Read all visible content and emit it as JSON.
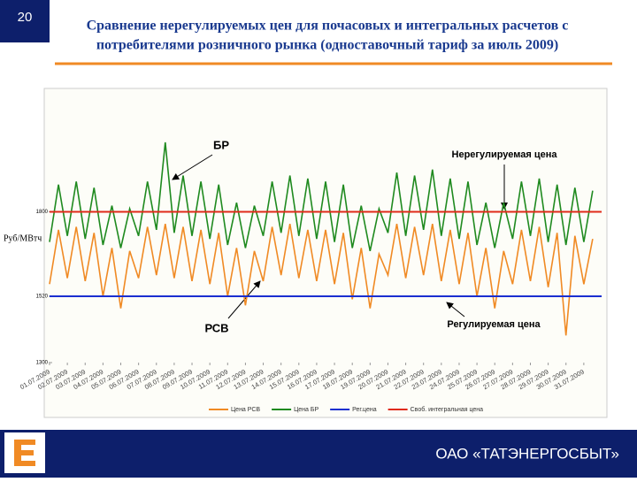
{
  "slide_number": "20",
  "title_lines": [
    "Сравнение нерегулируемых  цен для почасовых и интегральных расчетов с",
    "потребителями розничного рынка (одноставочный тариф за июль 2009)"
  ],
  "footer": "ОАО «ТАТЭНЕРГОСБЫТ»",
  "chart_data": {
    "type": "line",
    "ylabel": "Руб/МВтч",
    "ylim": [
      1300,
      2200
    ],
    "yticks": [
      1300,
      1520,
      1800
    ],
    "xlim": [
      0,
      31
    ],
    "xticks": [
      {
        "value": 0,
        "label": "01.07.2009"
      },
      {
        "value": 1,
        "label": "02.07.2009"
      },
      {
        "value": 2,
        "label": "03.07.2009"
      },
      {
        "value": 3,
        "label": "04.07.2009"
      },
      {
        "value": 4,
        "label": "05.07.2009"
      },
      {
        "value": 5,
        "label": "06.07.2009"
      },
      {
        "value": 6,
        "label": "07.07.2009"
      },
      {
        "value": 7,
        "label": "08.07.2009"
      },
      {
        "value": 8,
        "label": "09.07.2009"
      },
      {
        "value": 9,
        "label": "10.07.2009"
      },
      {
        "value": 10,
        "label": "11.07.2009"
      },
      {
        "value": 11,
        "label": "12.07.2009"
      },
      {
        "value": 12,
        "label": "13.07.2009"
      },
      {
        "value": 13,
        "label": "14.07.2009"
      },
      {
        "value": 14,
        "label": "15.07.2009"
      },
      {
        "value": 15,
        "label": "16.07.2009"
      },
      {
        "value": 16,
        "label": "17.07.2009"
      },
      {
        "value": 17,
        "label": "18.07.2009"
      },
      {
        "value": 18,
        "label": "19.07.2009"
      },
      {
        "value": 19,
        "label": "20.07.2009"
      },
      {
        "value": 20,
        "label": "21.07.2009"
      },
      {
        "value": 21,
        "label": "22.07.2009"
      },
      {
        "value": 22,
        "label": "23.07.2009"
      },
      {
        "value": 23,
        "label": "24.07.2009"
      },
      {
        "value": 24,
        "label": "25.07.2009"
      },
      {
        "value": 25,
        "label": "26.07.2009"
      },
      {
        "value": 26,
        "label": "27.07.2009"
      },
      {
        "value": 27,
        "label": "28.07.2009"
      },
      {
        "value": 28,
        "label": "29.07.2009"
      },
      {
        "value": 29,
        "label": "30.07.2009"
      },
      {
        "value": 30,
        "label": "31.07.2009"
      }
    ],
    "x": [
      0,
      0.5,
      1,
      1.5,
      2,
      2.5,
      3,
      3.5,
      4,
      4.5,
      5,
      5.5,
      6,
      6.5,
      7,
      7.5,
      8,
      8.5,
      9,
      9.5,
      10,
      10.5,
      11,
      11.5,
      12,
      12.5,
      13,
      13.5,
      14,
      14.5,
      15,
      15.5,
      16,
      16.5,
      17,
      17.5,
      18,
      18.5,
      19,
      19.5,
      20,
      20.5,
      21,
      21.5,
      22,
      22.5,
      23,
      23.5,
      24,
      24.5,
      25,
      25.5,
      26,
      26.5,
      27,
      27.5,
      28,
      28.5,
      29,
      29.5,
      30,
      30.5
    ],
    "series": [
      {
        "name": "Цена РСВ",
        "color": "#f08a24",
        "values": [
          1560,
          1740,
          1580,
          1750,
          1570,
          1730,
          1520,
          1680,
          1480,
          1670,
          1580,
          1750,
          1590,
          1760,
          1580,
          1750,
          1570,
          1740,
          1560,
          1730,
          1520,
          1680,
          1490,
          1670,
          1570,
          1750,
          1590,
          1760,
          1580,
          1740,
          1570,
          1740,
          1560,
          1730,
          1510,
          1680,
          1480,
          1660,
          1590,
          1760,
          1580,
          1750,
          1590,
          1760,
          1570,
          1740,
          1560,
          1730,
          1520,
          1680,
          1480,
          1670,
          1560,
          1740,
          1570,
          1750,
          1550,
          1730,
          1390,
          1720,
          1560,
          1710
        ]
      },
      {
        "name": "Цена БР",
        "color": "#1f8a1f",
        "values": [
          1700,
          1890,
          1720,
          1900,
          1710,
          1880,
          1690,
          1820,
          1680,
          1810,
          1720,
          1900,
          1740,
          2030,
          1730,
          1920,
          1720,
          1900,
          1710,
          1890,
          1690,
          1830,
          1680,
          1820,
          1720,
          1900,
          1730,
          1920,
          1720,
          1910,
          1710,
          1900,
          1700,
          1890,
          1680,
          1820,
          1670,
          1810,
          1730,
          1930,
          1720,
          1920,
          1740,
          1940,
          1720,
          1910,
          1710,
          1900,
          1690,
          1830,
          1680,
          1830,
          1710,
          1900,
          1720,
          1910,
          1700,
          1890,
          1690,
          1880,
          1700,
          1870
        ]
      }
    ],
    "hlines": [
      {
        "name": "Рег.цена",
        "color": "#1a2fd0",
        "value": 1520
      },
      {
        "name": "Своб. интегральная цена",
        "color": "#e02a1a",
        "value": 1800
      }
    ],
    "annotations": [
      "БР",
      "Нерегулируемая цена",
      "РСВ",
      "Регулируемая цена"
    ]
  }
}
